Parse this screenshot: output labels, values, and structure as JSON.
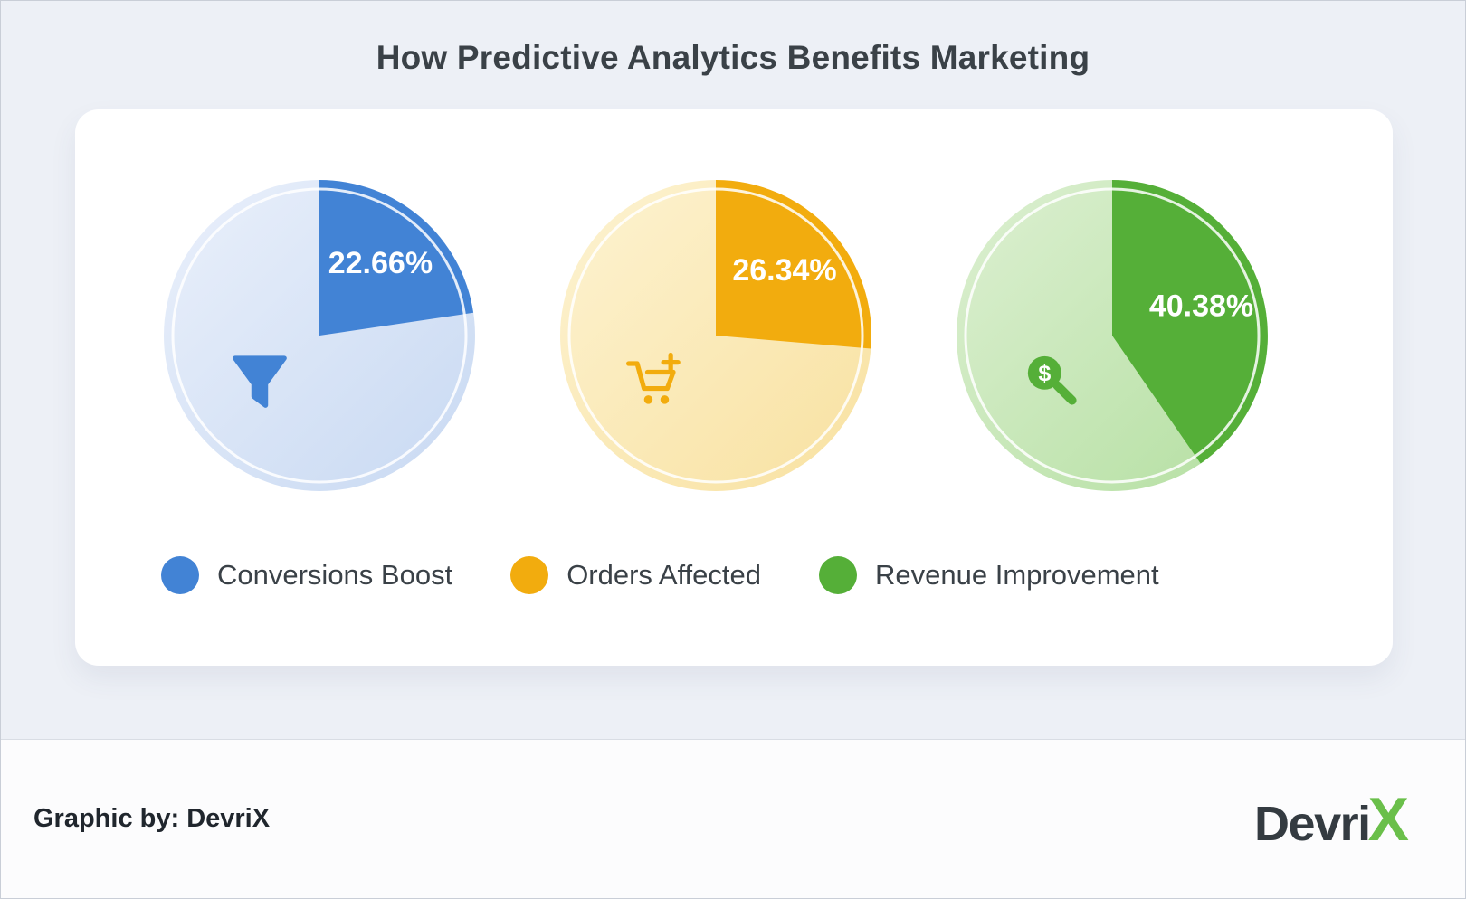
{
  "title": "How Predictive Analytics Benefits Marketing",
  "chart_data": {
    "type": "pie",
    "title": "How Predictive Analytics Benefits Marketing",
    "legend_position": "bottom",
    "slice_start": "12 o'clock, clockwise",
    "charts": [
      {
        "name": "Conversions Boost",
        "value_pct": 22.66,
        "remainder_pct": 77.34,
        "label": "22.66%",
        "color": "#4283d5",
        "bg_from": "#eaf0fb",
        "bg_to": "#c8d9f2",
        "icon": "funnel-icon"
      },
      {
        "name": "Orders Affected",
        "value_pct": 26.34,
        "remainder_pct": 73.66,
        "label": "26.34%",
        "color": "#f2ac0e",
        "bg_from": "#fdf3d2",
        "bg_to": "#f8e1a0",
        "icon": "cart-plus-icon"
      },
      {
        "name": "Revenue Improvement",
        "value_pct": 40.38,
        "remainder_pct": 59.62,
        "label": "40.38%",
        "color": "#55af38",
        "bg_from": "#ddf0d2",
        "bg_to": "#b4dfa1",
        "icon": "dollar-magnifier-icon"
      }
    ]
  },
  "footer": {
    "credit": "Graphic by: DevriX",
    "logo_text": "Devri",
    "logo_x": "X",
    "logo_x_color": "#6abf4a"
  }
}
